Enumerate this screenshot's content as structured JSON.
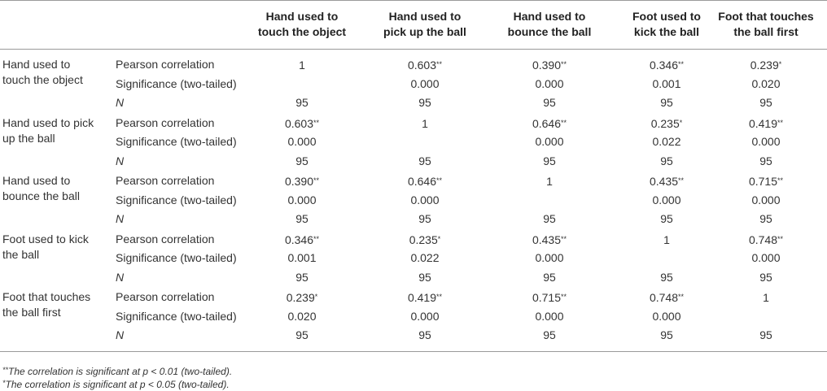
{
  "table": {
    "columns": [
      {
        "line1": "Hand used to",
        "line2": "touch the object"
      },
      {
        "line1": "Hand used to",
        "line2": "pick up the ball"
      },
      {
        "line1": "Hand used to",
        "line2": "bounce the ball"
      },
      {
        "line1": "Foot used to",
        "line2": "kick the ball"
      },
      {
        "line1": "Foot that touches",
        "line2": "the ball first"
      }
    ],
    "stat_labels": {
      "pearson": "Pearson correlation",
      "sig": "Significance (two-tailed)",
      "n": "N"
    },
    "groups": [
      {
        "label_line1": "Hand used to",
        "label_line2": "touch the object",
        "pearson": [
          [
            "1",
            ""
          ],
          [
            "0.603",
            "**"
          ],
          [
            "0.390",
            "**"
          ],
          [
            "0.346",
            "**"
          ],
          [
            "0.239",
            "*"
          ]
        ],
        "sig": [
          "",
          "0.000",
          "0.000",
          "0.001",
          "0.020"
        ],
        "n": [
          "95",
          "95",
          "95",
          "95",
          "95"
        ]
      },
      {
        "label_line1": "Hand used to pick",
        "label_line2": "up the ball",
        "pearson": [
          [
            "0.603",
            "**"
          ],
          [
            "1",
            ""
          ],
          [
            "0.646",
            "**"
          ],
          [
            "0.235",
            "*"
          ],
          [
            "0.419",
            "**"
          ]
        ],
        "sig": [
          "0.000",
          "",
          "0.000",
          "0.022",
          "0.000"
        ],
        "n": [
          "95",
          "95",
          "95",
          "95",
          "95"
        ]
      },
      {
        "label_line1": "Hand used to",
        "label_line2": "bounce the ball",
        "pearson": [
          [
            "0.390",
            "**"
          ],
          [
            "0.646",
            "**"
          ],
          [
            "1",
            ""
          ],
          [
            "0.435",
            "**"
          ],
          [
            "0.715",
            "**"
          ]
        ],
        "sig": [
          "0.000",
          "0.000",
          "",
          "0.000",
          "0.000"
        ],
        "n": [
          "95",
          "95",
          "95",
          "95",
          "95"
        ]
      },
      {
        "label_line1": "Foot used to kick",
        "label_line2": "the ball",
        "pearson": [
          [
            "0.346",
            "**"
          ],
          [
            "0.235",
            "*"
          ],
          [
            "0.435",
            "**"
          ],
          [
            "1",
            ""
          ],
          [
            "0.748",
            "**"
          ]
        ],
        "sig": [
          "0.001",
          "0.022",
          "0.000",
          "",
          "0.000"
        ],
        "n": [
          "95",
          "95",
          "95",
          "95",
          "95"
        ]
      },
      {
        "label_line1": "Foot that touches",
        "label_line2": "the ball first",
        "pearson": [
          [
            "0.239",
            "*"
          ],
          [
            "0.419",
            "**"
          ],
          [
            "0.715",
            "**"
          ],
          [
            "0.748",
            "**"
          ],
          [
            "1",
            ""
          ]
        ],
        "sig": [
          "0.020",
          "0.000",
          "0.000",
          "0.000",
          ""
        ],
        "n": [
          "95",
          "95",
          "95",
          "95",
          "95"
        ]
      }
    ]
  },
  "footnotes": {
    "note1_mark": "**",
    "note1_text": "The correlation is significant at p < 0.01 (two-tailed).",
    "note2_mark": "*",
    "note2_text": "The correlation is significant at p < 0.05 (two-tailed)."
  }
}
